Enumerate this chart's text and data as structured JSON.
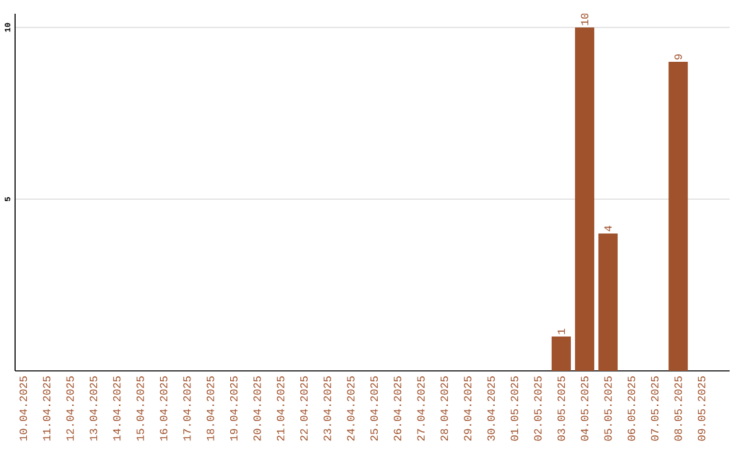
{
  "chart_data": {
    "type": "bar",
    "categories": [
      "10.04.2025",
      "11.04.2025",
      "12.04.2025",
      "13.04.2025",
      "14.04.2025",
      "15.04.2025",
      "16.04.2025",
      "17.04.2025",
      "18.04.2025",
      "19.04.2025",
      "20.04.2025",
      "21.04.2025",
      "22.04.2025",
      "23.04.2025",
      "24.04.2025",
      "25.04.2025",
      "26.04.2025",
      "27.04.2025",
      "28.04.2025",
      "29.04.2025",
      "30.04.2025",
      "01.05.2025",
      "02.05.2025",
      "03.05.2025",
      "04.05.2025",
      "05.05.2025",
      "06.05.2025",
      "07.05.2025",
      "08.05.2025",
      "09.05.2025"
    ],
    "values": [
      0,
      0,
      0,
      0,
      0,
      0,
      0,
      0,
      0,
      0,
      0,
      0,
      0,
      0,
      0,
      0,
      0,
      0,
      0,
      0,
      0,
      0,
      0,
      1,
      10,
      4,
      0,
      0,
      9,
      0
    ],
    "value_labels": [
      null,
      null,
      null,
      null,
      null,
      null,
      null,
      null,
      null,
      null,
      null,
      null,
      null,
      null,
      null,
      null,
      null,
      null,
      null,
      null,
      null,
      null,
      null,
      "1",
      "10",
      "4",
      null,
      null,
      "9",
      null
    ],
    "color": "#a0522d",
    "ylim": [
      0,
      10.4
    ],
    "yticks": [
      5,
      10
    ],
    "grid": "y"
  }
}
